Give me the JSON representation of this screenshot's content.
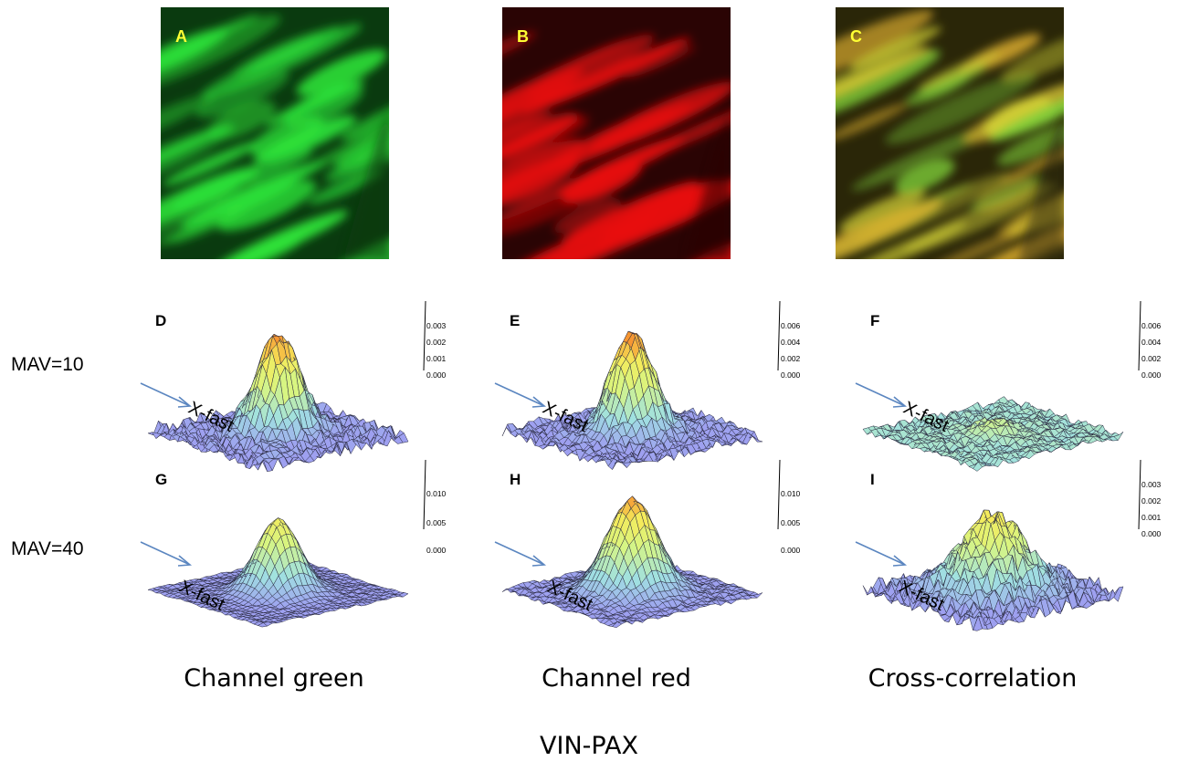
{
  "figure": {
    "title": "VIN-PAX",
    "row_labels": [
      "MAV=10",
      "MAV=40"
    ],
    "column_labels": [
      "Channel green",
      "Channel red",
      "Cross-correlation"
    ],
    "axis_label": "X-fast"
  },
  "micrographs": [
    {
      "letter": "A",
      "tint": "green",
      "base": "#0a3a0f",
      "highlight": "#2ee63a"
    },
    {
      "letter": "B",
      "tint": "red",
      "base": "#2a0404",
      "highlight": "#e81010"
    },
    {
      "letter": "C",
      "tint": "merge",
      "base": "#2a2608",
      "highlight": "#d8c22a"
    }
  ],
  "chart_data": [
    {
      "type": "surface",
      "letter": "D",
      "z_ticks": [
        "0.003",
        "0.002",
        "0.001",
        "0.000"
      ],
      "peak": 0.0035,
      "zmax": 0.0035,
      "width": 0.12,
      "noise": 0.00028,
      "axis_label": "X-fast"
    },
    {
      "type": "surface",
      "letter": "E",
      "z_ticks": [
        "0.006",
        "0.004",
        "0.002",
        "0.000"
      ],
      "peak": 0.007,
      "zmax": 0.007,
      "width": 0.12,
      "noise": 0.00045,
      "axis_label": "X-fast"
    },
    {
      "type": "surface",
      "letter": "F",
      "z_ticks": [
        "0.006",
        "0.004",
        "0.002",
        "0.000"
      ],
      "peak": 0.0009,
      "zmax": 0.007,
      "width": 0.1,
      "noise": 0.0003,
      "axis_label": "X-fast"
    },
    {
      "type": "surface",
      "letter": "G",
      "z_ticks": [
        "0.010",
        "0.005",
        "0.000"
      ],
      "peak": 0.0088,
      "zmax": 0.012,
      "width": 0.12,
      "noise": 0.00015,
      "axis_label": "X-fast"
    },
    {
      "type": "surface",
      "letter": "H",
      "z_ticks": [
        "0.010",
        "0.005",
        "0.000"
      ],
      "peak": 0.0112,
      "zmax": 0.012,
      "width": 0.14,
      "noise": 0.0003,
      "axis_label": "X-fast"
    },
    {
      "type": "surface",
      "letter": "I",
      "z_ticks": [
        "0.003",
        "0.002",
        "0.001",
        "0.000"
      ],
      "peak": 0.0027,
      "zmax": 0.0036,
      "width": 0.18,
      "noise": 0.00035,
      "axis_label": "X-fast"
    }
  ]
}
